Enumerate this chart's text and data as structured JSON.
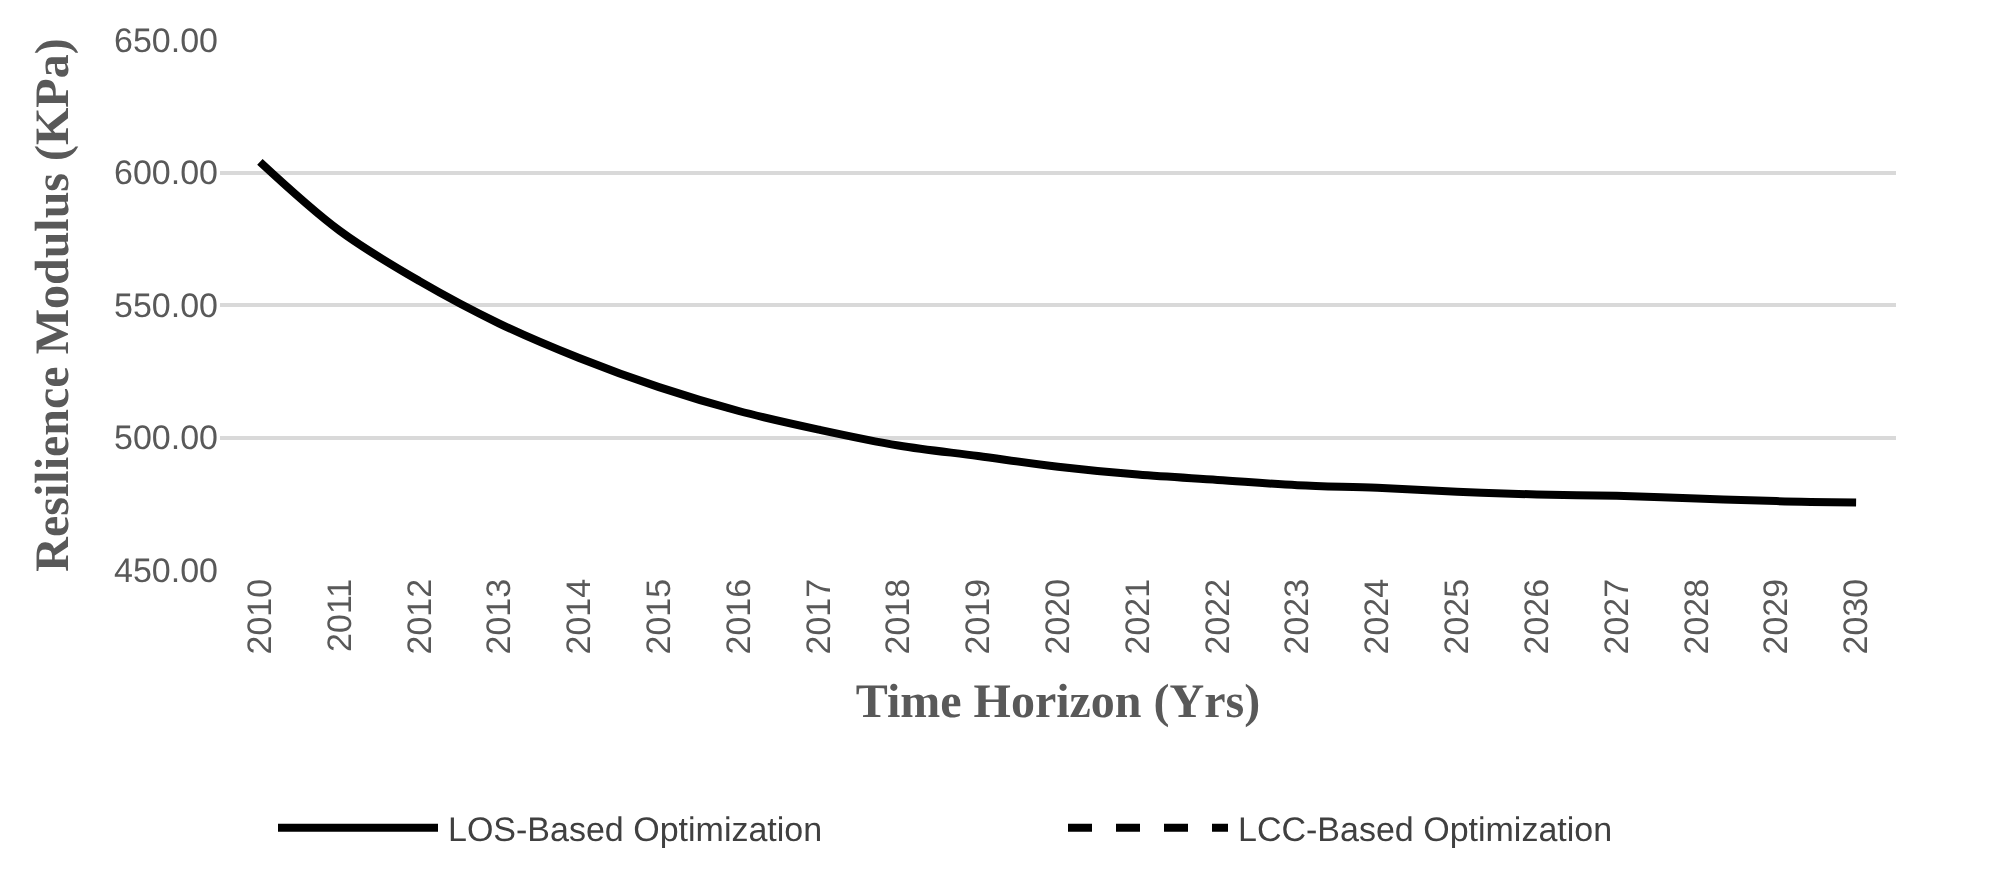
{
  "chart_data": {
    "type": "line",
    "xlabel": "Time Horizon (Yrs)",
    "ylabel": "Resilience Modulus (KPa)",
    "categories": [
      "2010",
      "2011",
      "2012",
      "2013",
      "2014",
      "2015",
      "2016",
      "2017",
      "2018",
      "2019",
      "2020",
      "2021",
      "2022",
      "2023",
      "2024",
      "2025",
      "2026",
      "2027",
      "2028",
      "2029",
      "2030"
    ],
    "series": [
      {
        "name": "LOS-Based Optimization",
        "color": "#000000",
        "line_style": "solid",
        "values": [
          604,
          578,
          559,
          543,
          530,
          519,
          510,
          503,
          497,
          493,
          489,
          486,
          484,
          482,
          481,
          479.5,
          478.5,
          478,
          477,
          476,
          475.5
        ]
      },
      {
        "name": "LCC-Based Optimization",
        "color": "#000000",
        "line_style": "dashed",
        "values": [
          null,
          null,
          null,
          null,
          null,
          null,
          null,
          null,
          null,
          null,
          null,
          null,
          null,
          null,
          null,
          null,
          null,
          null,
          null,
          null,
          null
        ]
      }
    ],
    "ylim": [
      450,
      650
    ],
    "yticks": [
      {
        "value": 450,
        "label": "450.00"
      },
      {
        "value": 500,
        "label": "500.00"
      },
      {
        "value": 550,
        "label": "550.00"
      },
      {
        "value": 600,
        "label": "600.00"
      },
      {
        "value": 650,
        "label": "650.00"
      }
    ],
    "grid": "y",
    "legend": "bottom",
    "marker": "none"
  }
}
